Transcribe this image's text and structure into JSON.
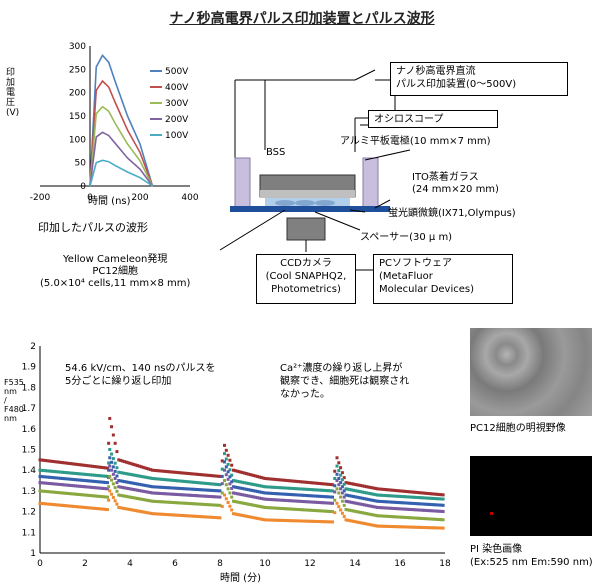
{
  "title": "ナノ秒高電界パルス印加装置とパルス波形",
  "pulse_chart": {
    "ylabel": "印加電圧(V)",
    "xlabel": "時間 (ns)",
    "yticks": [
      "300",
      "250",
      "200",
      "150",
      "100",
      "50",
      "0"
    ],
    "xticks": [
      "-200",
      "0",
      "200",
      "400"
    ],
    "caption": "印加したパルスの波形",
    "series": [
      {
        "name": "500V",
        "peak": 280,
        "color": "#4f81bd"
      },
      {
        "name": "400V",
        "peak": 225,
        "color": "#c0504d"
      },
      {
        "name": "300V",
        "peak": 170,
        "color": "#9bbb59"
      },
      {
        "name": "200V",
        "peak": 115,
        "color": "#8064a2"
      },
      {
        "name": "100V",
        "peak": 55,
        "color": "#4bacc6"
      }
    ]
  },
  "setup": {
    "pulse_device": "ナノ秒高電界直流\nパルス印加装置(0～500V)",
    "oscilloscope": "オシロスコープ",
    "electrode": "アルミ平板電極(10 mm×7 mm)",
    "bss": "BSS",
    "ito_glass": "ITO蒸着ガラス\n(24 mm×20 mm)",
    "microscope": "蛍光顕微鏡(IX71,Olympus)",
    "spacer": "スペーサー(30 μ m)",
    "cells": "Yellow Cameleon発現\nPC12細胞\n(5.0×10⁴ cells,11 mm×8 mm)",
    "camera": "CCDカメラ\n(Cool SNAPHQ2,\nPhotometrics)",
    "software": "PCソフトウェア\n(MetaFluor\nMolecular Devices)"
  },
  "ratio_chart": {
    "ylabel": "F535 nm / F480 nm",
    "xlabel": "時間 (分)",
    "yticks": [
      "2",
      "1.9",
      "1.8",
      "1.7",
      "1.6",
      "1.5",
      "1.4",
      "1.3",
      "1.2",
      "1.1",
      "1"
    ],
    "xticks": [
      "0",
      "2",
      "4",
      "6",
      "8",
      "10",
      "12",
      "14",
      "16",
      "18"
    ],
    "annotation1": "54.6 kV/cm、140 nsのパルスを\n5分ごとに繰り返し印加",
    "annotation2": "Ca²⁺濃度の繰り返し上昇が\n観察でき、細胞死は観察され\nなかった。"
  },
  "images": {
    "bright_caption": "PC12細胞の明視野像",
    "pi_caption": "PI 染色画像\n(Ex:525 nm Em:590 nm)"
  },
  "chart_data": [
    {
      "type": "line",
      "title": "",
      "xlabel": "時間 (ns)",
      "ylabel": "印加電圧(V)",
      "xlim": [
        -200,
        400
      ],
      "ylim": [
        0,
        300
      ],
      "series": [
        {
          "name": "500V",
          "x": [
            0,
            25,
            50,
            75,
            100,
            150,
            200,
            250
          ],
          "values": [
            0,
            255,
            280,
            265,
            225,
            150,
            90,
            0
          ]
        },
        {
          "name": "400V",
          "x": [
            0,
            25,
            50,
            75,
            100,
            150,
            200,
            250
          ],
          "values": [
            0,
            205,
            225,
            212,
            180,
            120,
            72,
            0
          ]
        },
        {
          "name": "300V",
          "x": [
            0,
            25,
            50,
            75,
            100,
            150,
            200,
            250
          ],
          "values": [
            0,
            155,
            170,
            160,
            135,
            90,
            54,
            0
          ]
        },
        {
          "name": "200V",
          "x": [
            0,
            25,
            50,
            75,
            100,
            150,
            200,
            250
          ],
          "values": [
            0,
            105,
            115,
            108,
            92,
            60,
            36,
            0
          ]
        },
        {
          "name": "100V",
          "x": [
            0,
            25,
            50,
            75,
            100,
            150,
            200,
            250
          ],
          "values": [
            0,
            50,
            55,
            52,
            44,
            30,
            18,
            0
          ]
        }
      ]
    },
    {
      "type": "scatter",
      "title": "",
      "xlabel": "時間 (分)",
      "ylabel": "F535 nm / F480 nm",
      "xlim": [
        0,
        18
      ],
      "ylim": [
        1,
        2
      ],
      "series": [
        {
          "x": [
            0,
            3,
            3.1,
            3.5,
            5,
            8,
            8.2,
            8.6,
            10,
            13,
            13.2,
            13.6,
            15,
            18
          ],
          "values": [
            1.45,
            1.41,
            1.65,
            1.45,
            1.4,
            1.37,
            1.52,
            1.4,
            1.36,
            1.33,
            1.46,
            1.34,
            1.31,
            1.28
          ],
          "color": "#a03030"
        },
        {
          "x": [
            0,
            3,
            3.1,
            3.5,
            5,
            8,
            8.2,
            8.6,
            10,
            13,
            13.2,
            13.6,
            15,
            18
          ],
          "values": [
            1.4,
            1.37,
            1.5,
            1.39,
            1.36,
            1.33,
            1.48,
            1.35,
            1.32,
            1.3,
            1.42,
            1.31,
            1.28,
            1.26
          ],
          "color": "#2e9a8a"
        },
        {
          "x": [
            0,
            3,
            3.1,
            3.5,
            5,
            8,
            8.2,
            8.6,
            10,
            13,
            13.2,
            13.6,
            15,
            18
          ],
          "values": [
            1.37,
            1.34,
            1.46,
            1.35,
            1.32,
            1.3,
            1.44,
            1.32,
            1.29,
            1.27,
            1.38,
            1.28,
            1.25,
            1.23
          ],
          "color": "#3560b0"
        },
        {
          "x": [
            0,
            3,
            3.1,
            3.5,
            5,
            8,
            8.2,
            8.6,
            10,
            13,
            13.2,
            13.6,
            15,
            18
          ],
          "values": [
            1.34,
            1.31,
            1.42,
            1.32,
            1.29,
            1.27,
            1.4,
            1.29,
            1.26,
            1.24,
            1.35,
            1.25,
            1.22,
            1.2
          ],
          "color": "#7a5aa0"
        },
        {
          "x": [
            0,
            3,
            3.1,
            3.5,
            5,
            8,
            8.2,
            8.6,
            10,
            13,
            13.2,
            13.6,
            15,
            18
          ],
          "values": [
            1.3,
            1.27,
            1.37,
            1.28,
            1.25,
            1.23,
            1.35,
            1.25,
            1.22,
            1.2,
            1.31,
            1.21,
            1.18,
            1.16
          ],
          "color": "#8aa840"
        },
        {
          "x": [
            0,
            3,
            3.1,
            3.5,
            5,
            8,
            8.2,
            8.6,
            10,
            13,
            13.2,
            13.6,
            15,
            18
          ],
          "values": [
            1.24,
            1.21,
            1.3,
            1.22,
            1.19,
            1.17,
            1.28,
            1.19,
            1.16,
            1.15,
            1.24,
            1.16,
            1.13,
            1.12
          ],
          "color": "#f08a30"
        }
      ]
    }
  ]
}
